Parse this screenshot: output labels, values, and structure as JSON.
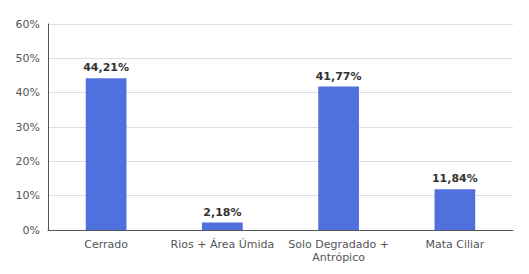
{
  "chart_data": {
    "type": "bar",
    "categories": [
      "Cerrado",
      "Rios + Área Úmida",
      "Solo Degradado +\nAntrópico",
      "Mata Ciliar"
    ],
    "values": [
      44.21,
      2.18,
      41.77,
      11.84
    ],
    "value_labels": [
      "44,21%",
      "2,18%",
      "41,77%",
      "11,84%"
    ],
    "data_labels": true,
    "ylim": [
      0,
      60
    ],
    "yticks": [
      {
        "value": 0,
        "label": "0%"
      },
      {
        "value": 10,
        "label": "10%"
      },
      {
        "value": 20,
        "label": "20%"
      },
      {
        "value": 30,
        "label": "30%"
      },
      {
        "value": 40,
        "label": "40%"
      },
      {
        "value": 50,
        "label": "50%"
      },
      {
        "value": 60,
        "label": "60%"
      }
    ],
    "grid": true
  }
}
